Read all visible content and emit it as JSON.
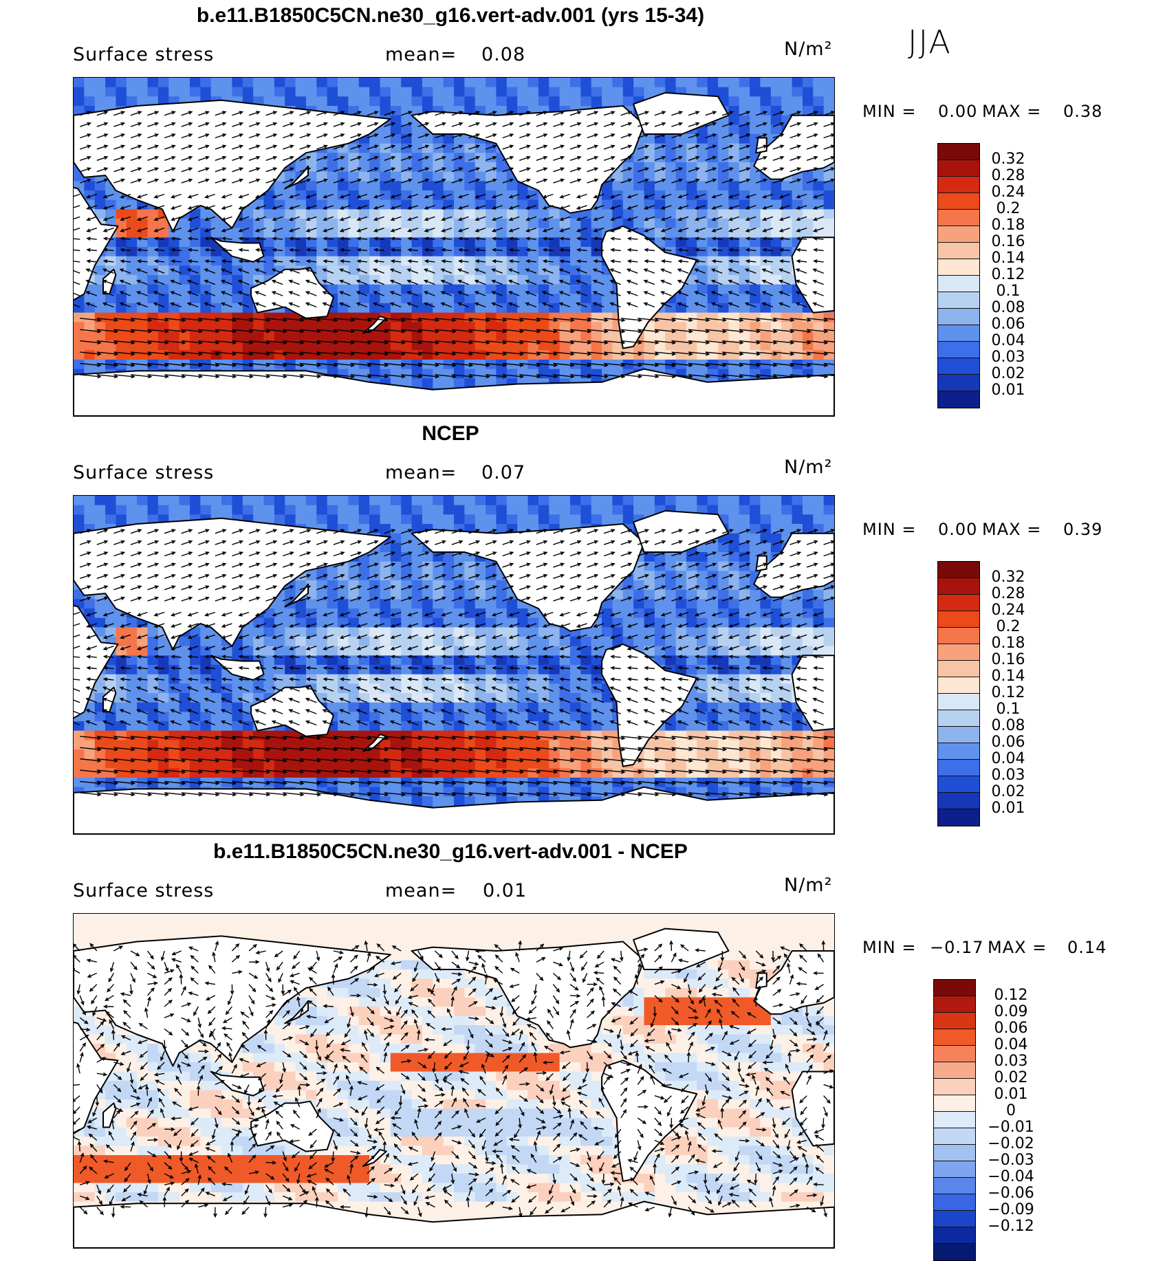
{
  "season": "JJA",
  "units": "N/m²",
  "min_label": "MIN =",
  "max_label": "MAX =",
  "mean_label": "mean=",
  "seq_colors": [
    "#7a0a0a",
    "#a8140d",
    "#d42a12",
    "#eb4a1a",
    "#f5764a",
    "#f7a27c",
    "#f8c4a6",
    "#fde6d2",
    "#d9e7f6",
    "#b7d1f1",
    "#8db4ee",
    "#5f92ec",
    "#3d6fe8",
    "#1f4fd6",
    "#1638b8",
    "#0c1f8c"
  ],
  "diff_colors": [
    "#7a0a0a",
    "#b01a0e",
    "#d93614",
    "#f05a28",
    "#f5825a",
    "#f8ab8c",
    "#fbd0bd",
    "#fdf0e6",
    "#ddeaf8",
    "#c2d8f5",
    "#a3c1f2",
    "#7fa5ef",
    "#5b86ec",
    "#3866e4",
    "#1c46c9",
    "#0c2aa0",
    "#071a72"
  ],
  "chart_data": [
    {
      "type": "heatmap",
      "title": "b.e11.B1850C5CN.ne30_g16.vert-adv.001 (yrs 15-34)",
      "variable": "Surface stress",
      "mean": "0.08",
      "min": "0.00",
      "max": "0.38",
      "levels": [
        "0.32",
        "0.28",
        "0.24",
        "0.2",
        "0.18",
        "0.16",
        "0.14",
        "0.12",
        "0.1",
        "0.08",
        "0.06",
        "0.04",
        "0.03",
        "0.02",
        "0.01"
      ]
    },
    {
      "type": "heatmap",
      "title": "NCEP",
      "variable": "Surface stress",
      "mean": "0.07",
      "min": "0.00",
      "max": "0.39",
      "levels": [
        "0.32",
        "0.28",
        "0.24",
        "0.2",
        "0.18",
        "0.16",
        "0.14",
        "0.12",
        "0.1",
        "0.08",
        "0.06",
        "0.04",
        "0.03",
        "0.02",
        "0.01"
      ]
    },
    {
      "type": "heatmap",
      "title": "b.e11.B1850C5CN.ne30_g16.vert-adv.001 - NCEP",
      "variable": "Surface stress",
      "mean": "0.01",
      "min": "−0.17",
      "max": "0.14",
      "levels": [
        "0.12",
        "0.09",
        "0.06",
        "0.04",
        "0.03",
        "0.02",
        "0.01",
        "0",
        "−0.01",
        "−0.02",
        "−0.03",
        "−0.04",
        "−0.06",
        "−0.09",
        "−0.12"
      ]
    }
  ]
}
